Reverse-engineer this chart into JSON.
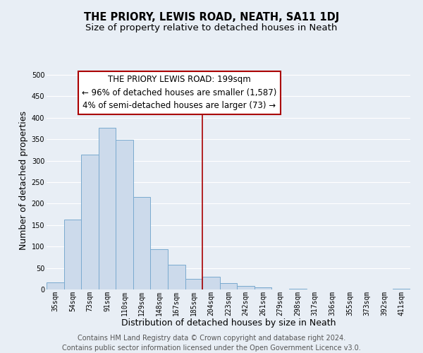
{
  "title": "THE PRIORY, LEWIS ROAD, NEATH, SA11 1DJ",
  "subtitle": "Size of property relative to detached houses in Neath",
  "xlabel": "Distribution of detached houses by size in Neath",
  "ylabel": "Number of detached properties",
  "footer_lines": [
    "Contains HM Land Registry data © Crown copyright and database right 2024.",
    "Contains public sector information licensed under the Open Government Licence v3.0."
  ],
  "categories": [
    "35sqm",
    "54sqm",
    "73sqm",
    "91sqm",
    "110sqm",
    "129sqm",
    "148sqm",
    "167sqm",
    "185sqm",
    "204sqm",
    "223sqm",
    "242sqm",
    "261sqm",
    "279sqm",
    "298sqm",
    "317sqm",
    "336sqm",
    "355sqm",
    "373sqm",
    "392sqm",
    "411sqm"
  ],
  "values": [
    17,
    163,
    315,
    377,
    348,
    215,
    93,
    57,
    25,
    29,
    15,
    8,
    5,
    0,
    2,
    0,
    0,
    0,
    0,
    0,
    1
  ],
  "bar_color": "#ccdaeb",
  "bar_edge_color": "#7aaacf",
  "vline_x_index": 9,
  "vline_color": "#aa0000",
  "annotation_title": "THE PRIORY LEWIS ROAD: 199sqm",
  "annotation_line2": "← 96% of detached houses are smaller (1,587)",
  "annotation_line3": "4% of semi-detached houses are larger (73) →",
  "annotation_box_color": "#ffffff",
  "annotation_box_edge": "#aa0000",
  "ylim": [
    0,
    510
  ],
  "yticks": [
    0,
    50,
    100,
    150,
    200,
    250,
    300,
    350,
    400,
    450,
    500
  ],
  "background_color": "#e8eef5",
  "grid_color": "#ffffff",
  "title_fontsize": 10.5,
  "subtitle_fontsize": 9.5,
  "axis_label_fontsize": 9,
  "tick_fontsize": 7,
  "footer_fontsize": 7,
  "annotation_fontsize": 8.5
}
